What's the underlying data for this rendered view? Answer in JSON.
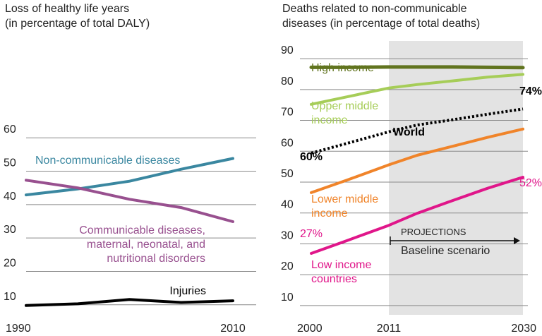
{
  "chart_data": [
    {
      "type": "line",
      "title": "Loss of healthy life years",
      "subtitle": "(in percentage of total DALY)",
      "x": [
        1990,
        1995,
        2000,
        2005,
        2010
      ],
      "xticks": [
        1990,
        2010
      ],
      "ylim": [
        7,
        63
      ],
      "yticks": [
        10,
        20,
        30,
        40,
        50,
        60
      ],
      "grid": true,
      "series": [
        {
          "name": "Non-communicable diseases",
          "label_lines": [
            "Non-communicable diseases"
          ],
          "color": "#3a87a0",
          "values": [
            42.9,
            44.7,
            47.0,
            50.6,
            53.8
          ]
        },
        {
          "name": "Communicable diseases, maternal, neonatal, and nutritional disorders",
          "label_lines": [
            "Communicable diseases,",
            "maternal, neonatal, and",
            "nutritional disorders"
          ],
          "color": "#98508f",
          "values": [
            47.3,
            45.0,
            41.6,
            39.1,
            34.9
          ]
        },
        {
          "name": "Injuries",
          "label_lines": [
            "Injuries"
          ],
          "color": "#000000",
          "values": [
            9.8,
            10.3,
            11.6,
            10.7,
            11.2
          ]
        }
      ]
    },
    {
      "type": "line",
      "title": "Deaths related to non-communicable",
      "subtitle": "diseases (in percentage of total deaths)",
      "x": [
        2000,
        2005,
        2011,
        2015,
        2020,
        2025,
        2030
      ],
      "xticks": [
        2000,
        2011,
        2030
      ],
      "ylim": [
        7,
        93
      ],
      "yticks": [
        10,
        20,
        30,
        40,
        50,
        60,
        70,
        80,
        90
      ],
      "grid": true,
      "projection": {
        "start": 2011,
        "end": 2030,
        "label_top": "PROJECTIONS",
        "label_bottom": "Baseline scenario",
        "shade_color": "#e3e3e3"
      },
      "annotations": {
        "world_start": "60%",
        "world_end": "74%",
        "low_start": "27%",
        "low_end": "52%"
      },
      "series": [
        {
          "name": "High income",
          "label_lines": [
            "High income"
          ],
          "color": "#61741f",
          "style": "solid",
          "values": [
            87.2,
            87.2,
            87.3,
            87.3,
            87.3,
            87.2,
            87.1
          ]
        },
        {
          "name": "Upper middle income",
          "label_lines": [
            "Upper middle",
            "income"
          ],
          "color": "#a6cd58",
          "style": "solid",
          "values": [
            75.2,
            77.6,
            80.5,
            81.6,
            82.8,
            84.0,
            84.9
          ]
        },
        {
          "name": "World",
          "label_lines": [
            "World"
          ],
          "color": "#000000",
          "style": "dotted",
          "values": [
            59.4,
            62.5,
            66.3,
            68.5,
            70.2,
            72.0,
            73.7
          ]
        },
        {
          "name": "Lower middle income",
          "label_lines": [
            "Lower middle",
            "income"
          ],
          "color": "#f0842a",
          "style": "solid",
          "values": [
            46.6,
            50.6,
            55.6,
            58.7,
            61.6,
            64.5,
            67.2
          ]
        },
        {
          "name": "Low income countries",
          "label_lines": [
            "Low income",
            "countries"
          ],
          "color": "#e0168a",
          "style": "solid",
          "values": [
            26.9,
            31.0,
            36.0,
            39.9,
            44.0,
            48.0,
            51.6
          ]
        }
      ]
    }
  ]
}
